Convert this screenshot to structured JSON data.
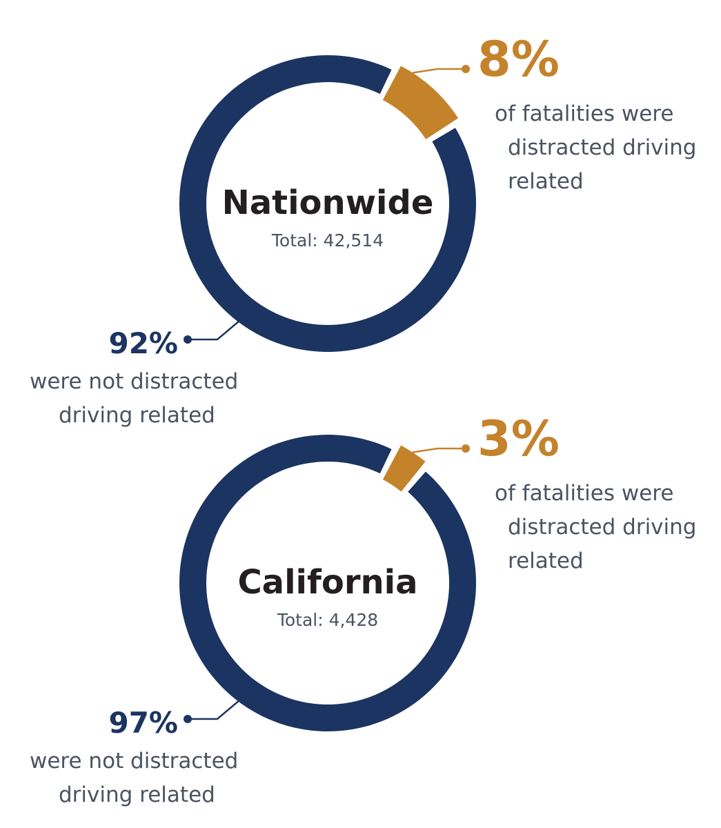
{
  "colors": {
    "navy": "#1c3461",
    "orange": "#c4832b",
    "text": "#4a5360"
  },
  "chart_data": [
    {
      "type": "pie",
      "title": "Nationwide",
      "subtitle": "Total: 42,514",
      "slices": [
        {
          "label": "distracted driving related",
          "value": 8,
          "color": "#c4832b"
        },
        {
          "label": "not distracted driving related",
          "value": 92,
          "color": "#1c3461"
        }
      ],
      "labels": {
        "orange_pct": "8%",
        "orange_lines": [
          "of fatalities were",
          "distracted driving",
          "related"
        ],
        "navy_pct": "92%",
        "navy_lines": [
          "were not distracted",
          "driving related"
        ]
      }
    },
    {
      "type": "pie",
      "title": "California",
      "subtitle": "Total: 4,428",
      "slices": [
        {
          "label": "distracted driving related",
          "value": 3,
          "color": "#c4832b"
        },
        {
          "label": "not distracted driving related",
          "value": 97,
          "color": "#1c3461"
        }
      ],
      "labels": {
        "orange_pct": "3%",
        "orange_lines": [
          "of fatalities were",
          "distracted driving",
          "related"
        ],
        "navy_pct": "97%",
        "navy_lines": [
          "were not distracted",
          "driving related"
        ]
      }
    }
  ]
}
